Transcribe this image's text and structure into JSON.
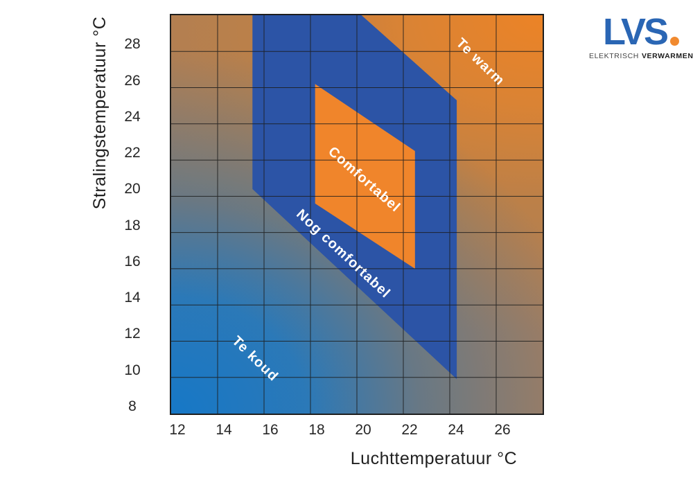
{
  "figure": {
    "background": "#ffffff"
  },
  "logo": {
    "wordmark": "LVS",
    "tagline_light": "ELEKTRISCH",
    "tagline_bold": "VERWARMEN",
    "wordmark_color": "#2a66b4",
    "dot_color": "#f18a2f",
    "tagline_color_light": "#454545",
    "tagline_color_bold": "#1c1c1c"
  },
  "chart_data": {
    "type": "area",
    "title": "",
    "xlabel": "Luchttemperatuur °C",
    "ylabel": "Stralingstemperatuur °C",
    "xlim": [
      12,
      28
    ],
    "ylim": [
      8,
      30
    ],
    "xticks": [
      12,
      14,
      16,
      18,
      20,
      22,
      24,
      26
    ],
    "yticks": [
      28,
      26,
      24,
      22,
      20,
      18,
      16,
      14,
      12,
      10,
      8
    ],
    "grid": true,
    "grid_step": 2,
    "grid_color": "#1c1c1c",
    "axis_text_color": "#262626",
    "background_gradient": {
      "bottom_left": "#1a79c6",
      "top_right": "#ec8326",
      "top_left": "#bd8158",
      "bottom_right": "#a87f5d"
    },
    "regions": [
      {
        "id": "te-koud",
        "label": "Te koud",
        "kind": "background-zone",
        "color": null,
        "label_pos": [
          15.6,
          11.0
        ],
        "label_rotation": 44
      },
      {
        "id": "te-warm",
        "label": "Te warm",
        "kind": "background-zone",
        "color": null,
        "label_pos": [
          25.3,
          27.4
        ],
        "label_rotation": 44
      },
      {
        "id": "nog-comfortabel",
        "label": "Nog comfortabel",
        "kind": "polygon",
        "color": "#2c54a6",
        "polygon": [
          [
            15.5,
            30
          ],
          [
            20.2,
            30
          ],
          [
            24.3,
            25.3
          ],
          [
            24.3,
            9.9
          ],
          [
            15.5,
            20.4
          ]
        ],
        "label_pos": [
          19.4,
          16.8
        ],
        "label_rotation": 43
      },
      {
        "id": "comfortabel",
        "label": "Comfortabel",
        "kind": "polygon",
        "color": "#f0852b",
        "polygon": [
          [
            18.2,
            26.2
          ],
          [
            22.5,
            22.5
          ],
          [
            22.5,
            16.0
          ],
          [
            18.2,
            19.6
          ]
        ],
        "label_pos": [
          20.3,
          20.9
        ],
        "label_rotation": 41.5
      }
    ]
  }
}
